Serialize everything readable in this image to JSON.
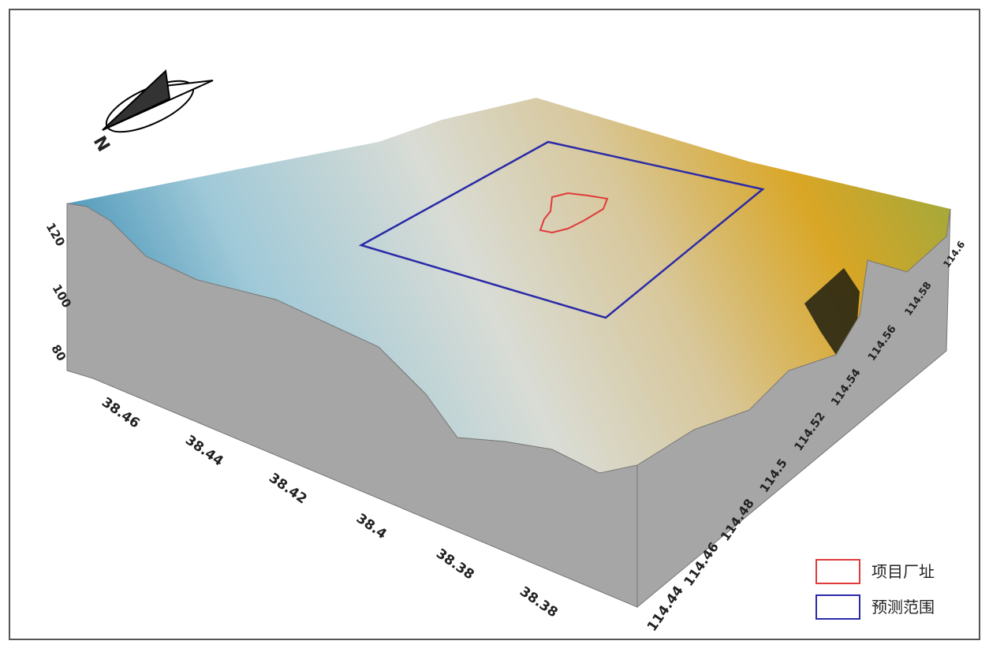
{
  "north_label": "N",
  "z_axis": {
    "ticks": [
      "120",
      "100",
      "80"
    ]
  },
  "lat_axis": {
    "ticks": [
      "38.46",
      "38.44",
      "38.42",
      "38.4",
      "38.38",
      "38.38"
    ]
  },
  "lon_axis": {
    "ticks": [
      "114.44",
      "114.46",
      "114.48",
      "114.5",
      "114.52",
      "114.54",
      "114.56",
      "114.58",
      "114.6"
    ]
  },
  "legend": [
    {
      "label": "项目厂址",
      "color": "#e03a3a"
    },
    {
      "label": "预测范围",
      "color": "#2a2aa8"
    }
  ]
}
